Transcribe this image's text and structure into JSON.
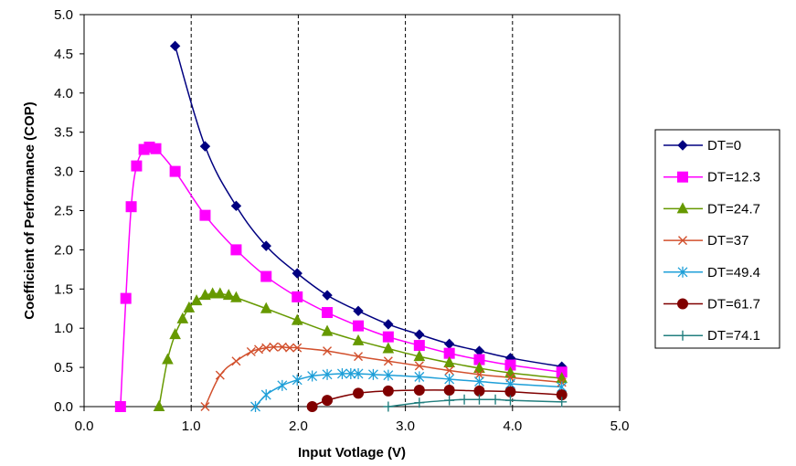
{
  "chart_data": {
    "type": "scatter",
    "title": "",
    "xlabel": "Input Votlage (V)",
    "ylabel": "Coefficient of Performance (COP)",
    "xlim": [
      0,
      5
    ],
    "ylim": [
      0,
      5
    ],
    "xticks": [
      "0.0",
      "1.0",
      "2.0",
      "3.0",
      "4.0",
      "5.0"
    ],
    "yticks": [
      "0.0",
      "0.5",
      "1.0",
      "1.5",
      "2.0",
      "2.5",
      "3.0",
      "3.5",
      "4.0",
      "4.5",
      "5.0"
    ],
    "grid": "vertical gridlines",
    "legend_position": "right",
    "series": [
      {
        "name": "DT=0",
        "color": "#000080",
        "marker": "diamond",
        "x": [
          0.85,
          1.13,
          1.42,
          1.7,
          1.99,
          2.27,
          2.56,
          2.84,
          3.13,
          3.41,
          3.69,
          3.98,
          4.46
        ],
        "y": [
          4.6,
          3.32,
          2.56,
          2.05,
          1.7,
          1.42,
          1.22,
          1.05,
          0.92,
          0.8,
          0.71,
          0.62,
          0.51
        ]
      },
      {
        "name": "DT=12.3",
        "color": "#FF00FF",
        "marker": "square",
        "x": [
          0.34,
          0.39,
          0.44,
          0.49,
          0.56,
          0.61,
          0.67,
          0.85,
          1.13,
          1.42,
          1.7,
          1.99,
          2.27,
          2.56,
          2.84,
          3.13,
          3.41,
          3.69,
          3.98,
          4.46
        ],
        "y": [
          0.0,
          1.38,
          2.55,
          3.07,
          3.28,
          3.31,
          3.29,
          3.0,
          2.44,
          2.0,
          1.66,
          1.4,
          1.2,
          1.03,
          0.89,
          0.78,
          0.68,
          0.6,
          0.53,
          0.44
        ]
      },
      {
        "name": "DT=24.7",
        "color": "#669900",
        "marker": "triangle",
        "x": [
          0.7,
          0.78,
          0.85,
          0.92,
          0.98,
          1.05,
          1.13,
          1.2,
          1.27,
          1.35,
          1.42,
          1.7,
          1.99,
          2.27,
          2.56,
          2.84,
          3.13,
          3.41,
          3.69,
          3.98,
          4.46
        ],
        "y": [
          0.0,
          0.6,
          0.92,
          1.12,
          1.26,
          1.35,
          1.42,
          1.44,
          1.44,
          1.42,
          1.39,
          1.25,
          1.1,
          0.96,
          0.84,
          0.74,
          0.64,
          0.56,
          0.49,
          0.43,
          0.36
        ]
      },
      {
        "name": "DT=37",
        "color": "#D2502D",
        "marker": "x",
        "x": [
          1.13,
          1.27,
          1.42,
          1.56,
          1.63,
          1.7,
          1.77,
          1.85,
          1.92,
          1.99,
          2.27,
          2.56,
          2.84,
          3.13,
          3.41,
          3.69,
          3.98,
          4.46
        ],
        "y": [
          0.0,
          0.4,
          0.58,
          0.7,
          0.73,
          0.75,
          0.76,
          0.76,
          0.75,
          0.75,
          0.71,
          0.64,
          0.58,
          0.52,
          0.46,
          0.41,
          0.37,
          0.31
        ]
      },
      {
        "name": "DT=49.4",
        "color": "#1E9FD8",
        "marker": "star",
        "x": [
          1.6,
          1.7,
          1.85,
          1.99,
          2.13,
          2.27,
          2.41,
          2.49,
          2.56,
          2.7,
          2.84,
          3.13,
          3.41,
          3.69,
          3.98,
          4.46
        ],
        "y": [
          0.0,
          0.15,
          0.27,
          0.34,
          0.39,
          0.41,
          0.42,
          0.42,
          0.42,
          0.41,
          0.4,
          0.38,
          0.35,
          0.32,
          0.29,
          0.25
        ]
      },
      {
        "name": "DT=61.7",
        "color": "#800000",
        "marker": "circle",
        "x": [
          2.13,
          2.27,
          2.56,
          2.84,
          3.13,
          3.41,
          3.69,
          3.98,
          4.46
        ],
        "y": [
          0.0,
          0.08,
          0.17,
          0.2,
          0.21,
          0.21,
          0.2,
          0.19,
          0.15
        ]
      },
      {
        "name": "DT=74.1",
        "color": "#227F7F",
        "marker": "plus",
        "x": [
          2.84,
          3.13,
          3.41,
          3.55,
          3.69,
          3.84,
          3.98,
          4.46
        ],
        "y": [
          0.0,
          0.05,
          0.08,
          0.09,
          0.09,
          0.09,
          0.08,
          0.06
        ]
      }
    ]
  }
}
